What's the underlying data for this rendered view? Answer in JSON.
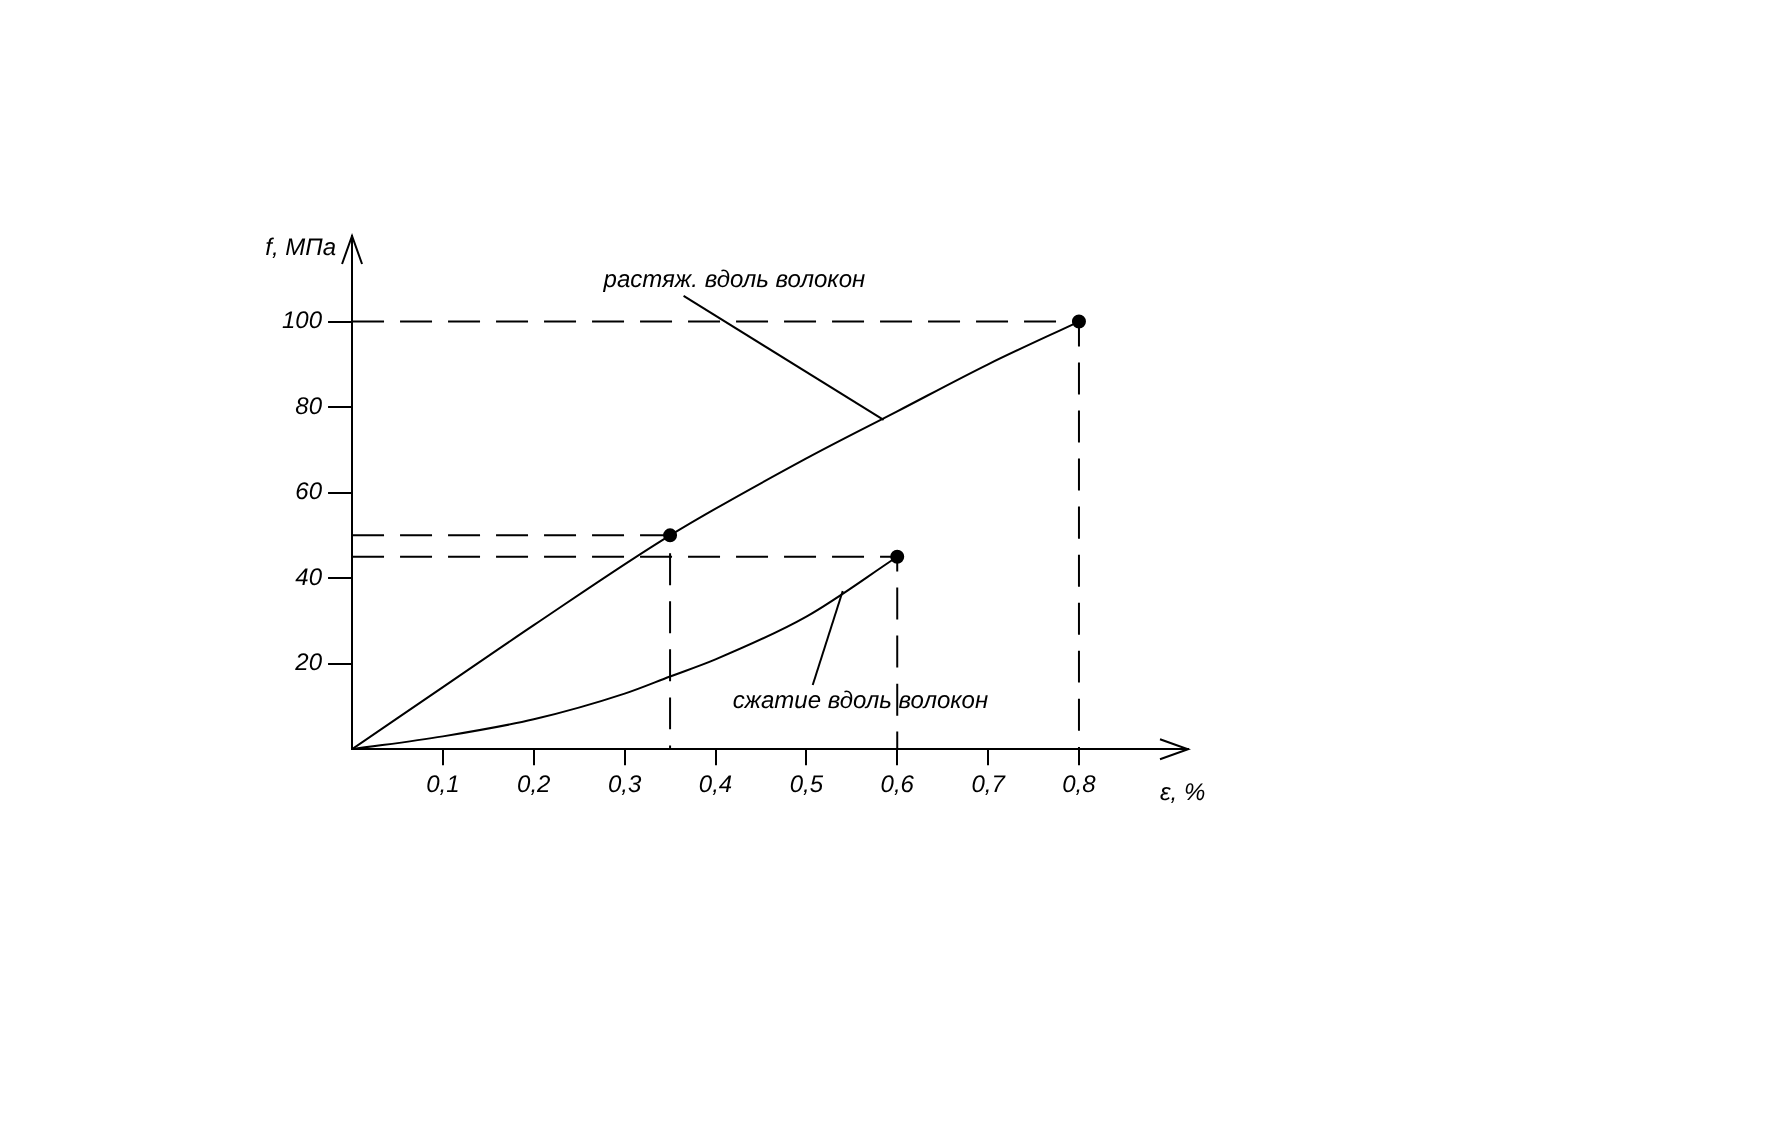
{
  "chart_data": {
    "type": "line",
    "xlabel": "ε, %",
    "ylabel": "f, МПа",
    "xlim": [
      0,
      0.92
    ],
    "ylim": [
      0,
      120
    ],
    "xticks": [
      {
        "value": 0.1,
        "label": "0,1"
      },
      {
        "value": 0.2,
        "label": "0,2"
      },
      {
        "value": 0.3,
        "label": "0,3"
      },
      {
        "value": 0.4,
        "label": "0,4"
      },
      {
        "value": 0.5,
        "label": "0,5"
      },
      {
        "value": 0.6,
        "label": "0,6"
      },
      {
        "value": 0.7,
        "label": "0,7"
      },
      {
        "value": 0.8,
        "label": "0,8"
      }
    ],
    "yticks": [
      20,
      40,
      60,
      80,
      100
    ],
    "grid": false,
    "legend": false,
    "series": [
      {
        "type": "line",
        "color": "#000000",
        "line_style": "solid",
        "marker": "none",
        "x": [
          0,
          0.1,
          0.2,
          0.35,
          0.5,
          0.6,
          0.7,
          0.8
        ],
        "values": [
          0,
          14.5,
          29,
          50,
          68,
          79,
          90,
          100
        ]
      },
      {
        "type": "line",
        "color": "#000000",
        "line_style": "solid",
        "marker": "none",
        "x": [
          0,
          0.1,
          0.2,
          0.3,
          0.35,
          0.4,
          0.5,
          0.6
        ],
        "values": [
          0,
          3,
          7,
          13,
          17,
          21,
          31,
          45
        ]
      },
      {
        "type": "line",
        "color": "#000000",
        "line_style": "dashed",
        "marker": "none",
        "x": [
          0,
          0.8,
          0.8
        ],
        "values": [
          100,
          100,
          0
        ]
      },
      {
        "type": "line",
        "color": "#000000",
        "line_style": "dashed",
        "marker": "none",
        "x": [
          0,
          0.35,
          0.35
        ],
        "values": [
          50,
          50,
          0
        ]
      },
      {
        "type": "line",
        "color": "#000000",
        "line_style": "dashed",
        "marker": "none",
        "x": [
          0,
          0.6,
          0.6
        ],
        "values": [
          45,
          45,
          0
        ]
      },
      {
        "type": "scatter",
        "color": "#000000",
        "marker": "circle",
        "x": [
          0.35,
          0.8,
          0.6
        ],
        "values": [
          50,
          100,
          45
        ]
      }
    ],
    "annotations": [
      {
        "text": "растяж. вдоль волокон",
        "x": 0.585,
        "y": 77
      },
      {
        "text": "сжатие вдоль волокон",
        "x": 0.54,
        "y": 37
      }
    ]
  }
}
